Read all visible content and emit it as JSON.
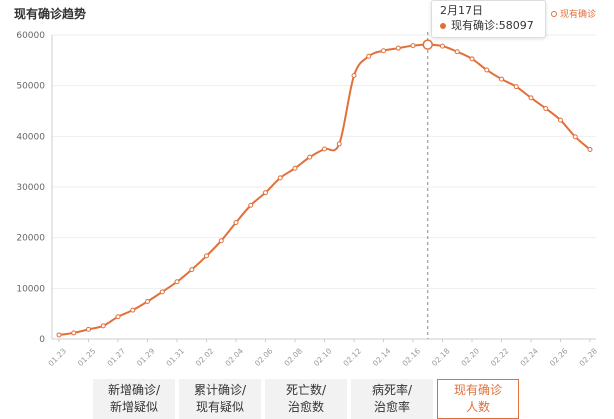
{
  "chart_data": {
    "type": "line",
    "title": "现有确诊趋势",
    "legend": "现有确诊",
    "legend_position": "top-right",
    "series_name": "现有确诊",
    "color": "#e2703a",
    "ylim": [
      0,
      60000
    ],
    "yticks": [
      0,
      10000,
      20000,
      30000,
      40000,
      50000,
      60000
    ],
    "grid": true,
    "x": [
      "01.23",
      "01.24",
      "01.25",
      "01.26",
      "01.27",
      "01.28",
      "01.29",
      "01.30",
      "01.31",
      "02.01",
      "02.02",
      "02.03",
      "02.04",
      "02.05",
      "02.06",
      "02.07",
      "02.08",
      "02.09",
      "02.10",
      "02.11",
      "02.12",
      "02.13",
      "02.14",
      "02.15",
      "02.16",
      "02.17",
      "02.18",
      "02.19",
      "02.20",
      "02.21",
      "02.22",
      "02.23",
      "02.24",
      "02.25",
      "02.26",
      "02.27",
      "02.28"
    ],
    "xtick_labels": [
      "01.23",
      "01.25",
      "01.27",
      "01.29",
      "01.31",
      "02.02",
      "02.04",
      "02.06",
      "02.08",
      "02.10",
      "02.12",
      "02.14",
      "02.16",
      "02.18",
      "02.20",
      "02.22",
      "02.24",
      "02.26",
      "02.28"
    ],
    "values": [
      800,
      1200,
      1900,
      2600,
      4400,
      5700,
      7400,
      9300,
      11300,
      13700,
      16400,
      19400,
      23000,
      26400,
      28900,
      31800,
      33700,
      35900,
      37500,
      38500,
      52000,
      55800,
      56900,
      57400,
      57900,
      58097,
      57800,
      56700,
      55300,
      53100,
      51300,
      49800,
      47600,
      45500,
      43200,
      39900,
      37400
    ],
    "highlight_index": 25
  },
  "tooltip": {
    "date": "2月17日",
    "label": "现有确诊",
    "value": "58097"
  },
  "tabs": [
    {
      "line1": "新增确诊/",
      "line2": "新增疑似",
      "active": false
    },
    {
      "line1": "累计确诊/",
      "line2": "现有疑似",
      "active": false
    },
    {
      "line1": "死亡数/",
      "line2": "治愈数",
      "active": false
    },
    {
      "line1": "病死率/",
      "line2": "治愈率",
      "active": false
    },
    {
      "line1": "现有确诊",
      "line2": "人数",
      "active": true
    }
  ]
}
